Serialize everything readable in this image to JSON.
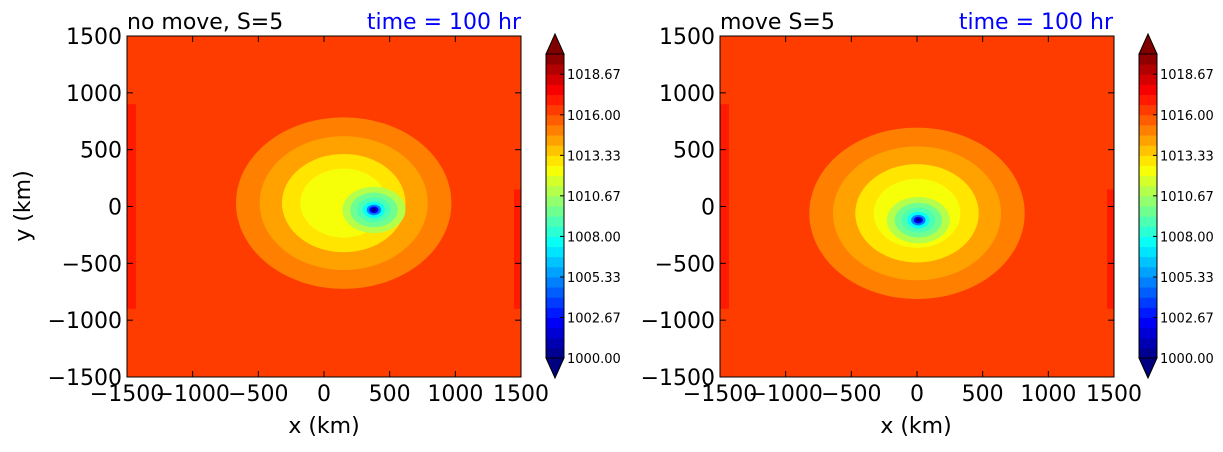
{
  "chart_data": [
    {
      "type": "heatmap",
      "subtype": "filled-contour",
      "title_left": "no move, S=5",
      "title_right": "time = 100 hr",
      "title_right_color": "#0000ff",
      "xlabel": "x (km)",
      "ylabel": "y (km)",
      "xlim": [
        -1500,
        1500
      ],
      "ylim": [
        -1500,
        1500
      ],
      "xticks": [
        "−1500",
        "−1000",
        "−500",
        "0",
        "500",
        "1000",
        "1500"
      ],
      "xtick_values": [
        -1500,
        -1000,
        -500,
        0,
        500,
        1000,
        1500
      ],
      "yticks": [
        "1500",
        "1000",
        "500",
        "0",
        "−500",
        "−1000",
        "−1500"
      ],
      "ytick_values": [
        1500,
        1000,
        500,
        0,
        -500,
        -1000,
        -1500
      ],
      "background_level_hpa": 1016.4,
      "low_center_km": [
        380,
        -30
      ],
      "low_min_hpa": 1000.0,
      "colorbar": {
        "range": [
          1000,
          1020
        ],
        "extend": "both",
        "tick_labels": [
          "1018.67",
          "1016.00",
          "1013.33",
          "1010.67",
          "1008.00",
          "1005.33",
          "1002.67",
          "1000.00"
        ],
        "tick_values": [
          1018.67,
          1016.0,
          1013.33,
          1010.67,
          1008.0,
          1005.33,
          1002.67,
          1000.0
        ]
      }
    },
    {
      "type": "heatmap",
      "subtype": "filled-contour",
      "title_left": "move S=5",
      "title_right": "time = 100 hr",
      "title_right_color": "#0000ff",
      "xlabel": "x (km)",
      "ylabel": "",
      "xlim": [
        -1500,
        1500
      ],
      "ylim": [
        -1500,
        1500
      ],
      "xticks": [
        "−1500",
        "−1000",
        "−500",
        "0",
        "500",
        "1000",
        "1500"
      ],
      "xtick_values": [
        -1500,
        -1000,
        -500,
        0,
        500,
        1000,
        1500
      ],
      "yticks": [
        "1500",
        "1000",
        "500",
        "0",
        "−500",
        "−1000",
        "−1500"
      ],
      "ytick_values": [
        1500,
        1000,
        500,
        0,
        -500,
        -1000,
        -1500
      ],
      "background_level_hpa": 1016.4,
      "low_center_km": [
        10,
        -120
      ],
      "low_min_hpa": 1000.0,
      "colorbar": {
        "range": [
          1000,
          1020
        ],
        "extend": "both",
        "tick_labels": [
          "1018.67",
          "1016.00",
          "1013.33",
          "1010.67",
          "1008.00",
          "1005.33",
          "1002.67",
          "1000.00"
        ],
        "tick_values": [
          1018.67,
          1016.0,
          1013.33,
          1010.67,
          1008.0,
          1005.33,
          1002.67,
          1000.0
        ]
      }
    }
  ],
  "colormap": "jet"
}
